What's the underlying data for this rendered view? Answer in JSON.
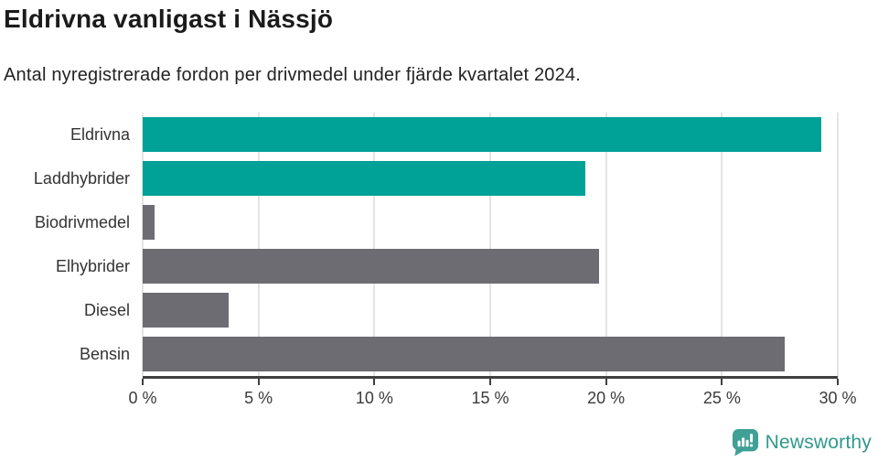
{
  "header": {
    "title": "Eldrivna vanligast i Nässjö",
    "subtitle": "Antal nyregistrerade fordon per drivmedel under fjärde kvartalet 2024."
  },
  "chart_data": {
    "type": "bar",
    "orientation": "horizontal",
    "title": "Eldrivna vanligast i Nässjö",
    "xlabel": "",
    "ylabel": "",
    "unit": "%",
    "categories": [
      "Eldrivna",
      "Laddhybrider",
      "Biodrivmedel",
      "Elhybrider",
      "Diesel",
      "Bensin"
    ],
    "values": [
      29.3,
      19.1,
      0.5,
      19.7,
      3.7,
      27.7
    ],
    "bar_colors": [
      "#00a197",
      "#00a197",
      "#6d6c72",
      "#6d6c72",
      "#6d6c72",
      "#6d6c72"
    ],
    "highlight_color": "#00a197",
    "default_color": "#6d6c72",
    "xlim": [
      0,
      30
    ],
    "x_tick_values": [
      0,
      5,
      10,
      15,
      20,
      25,
      30
    ],
    "x_tick_labels": [
      "0 %",
      "5 %",
      "10 %",
      "15 %",
      "20 %",
      "25 %",
      "30 %"
    ],
    "grid": true,
    "gridline_color": "#e4e4e4",
    "legend": "none"
  },
  "footer": {
    "brand": "Newsworthy",
    "icon": "newsworthy-logo-icon",
    "icon_color": "#3fa095",
    "text_color": "#2f998d"
  }
}
